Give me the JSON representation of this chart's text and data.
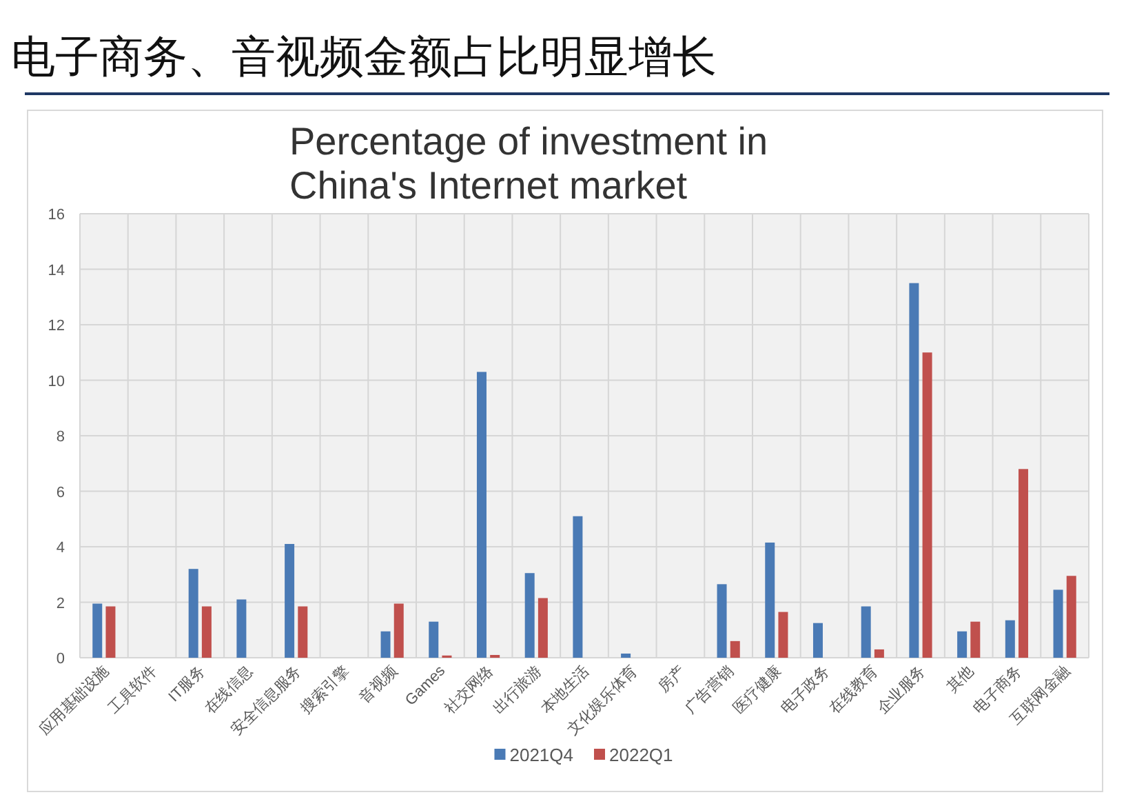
{
  "chart_data": {
    "type": "bar",
    "title": "电子商务、音视频金额占比明显增长",
    "subtitle": "Percentage of investment in China's Internet market",
    "categories": [
      "应用基础设施",
      "工具软件",
      "IT服务",
      "在线信息",
      "安全信息服务",
      "搜索引擎",
      "音视频",
      "Games",
      "社交网络",
      "出行旅游",
      "本地生活",
      "文化娱乐体育",
      "房产",
      "广告营销",
      "医疗健康",
      "电子政务",
      "在线教育",
      "企业服务",
      "其他",
      "电子商务",
      "互联网金融"
    ],
    "series": [
      {
        "name": "2021Q4",
        "color": "#4a7ab5",
        "values": [
          1.95,
          null,
          3.2,
          2.1,
          4.1,
          null,
          0.95,
          1.3,
          10.3,
          3.05,
          5.1,
          0.15,
          null,
          2.65,
          4.15,
          1.25,
          1.85,
          13.5,
          0.95,
          1.35,
          2.45
        ]
      },
      {
        "name": "2022Q1",
        "color": "#c0504d",
        "values": [
          1.85,
          null,
          1.85,
          null,
          1.85,
          null,
          1.95,
          0.08,
          0.1,
          2.15,
          null,
          null,
          null,
          0.6,
          1.65,
          null,
          0.3,
          11.0,
          1.3,
          6.8,
          2.95
        ]
      }
    ],
    "ylim": [
      0,
      16
    ],
    "yticks": [
      0,
      2,
      4,
      6,
      8,
      10,
      12,
      14,
      16
    ],
    "grid": true,
    "legend": "bottom"
  }
}
